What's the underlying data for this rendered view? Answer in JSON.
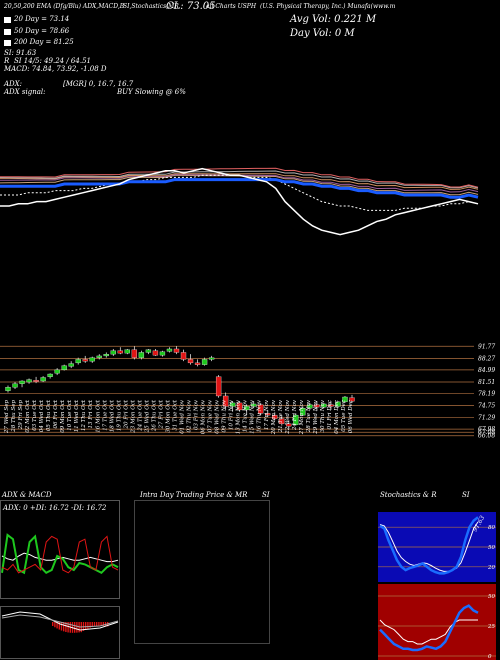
{
  "header": {
    "line1": "20,50,200 EMA (Dfg/Blu) ADX,MACD,B",
    "line1b": "SI,Stochastics,MR",
    "close_label": "CL: 73.05",
    "line1c": "all Charts USPH",
    "line1d": "(U.S. Physical Therapy, Inc.) Munafa(www.m",
    "avg_vol": "Avg Vol: 0.221 M",
    "day_vol": "Day Vol: 0   M",
    "ema20": "20  Day = 73.14",
    "ema50": "50  Day = 78.66",
    "ema200": "200  Day = 81.25",
    "si_a": "SI: 91.63",
    "si_b_r": "R",
    "si_b": "SI 14/5: 49.24 / 64.51",
    "macd": "MACD: 74.84, 73.92, -1.08  D",
    "adx": "ADX:",
    "adx_mgr": "[MGR] 0, 16.7, 16.7",
    "adx_signal": "ADX  signal:",
    "buy_signal": "BUY Slowing @ 6%"
  },
  "colors": {
    "up": "#1ec81e",
    "down": "#e01515",
    "ema20": "#ffffff",
    "ema50": "#ffffff",
    "ema200": "#1a5cff",
    "grid": "#b07040"
  },
  "chart_data": [
    {
      "type": "line",
      "title": "EMA (20,50,200)",
      "series": [
        {
          "name": "20 Day",
          "values": [
            70,
            70,
            71,
            71,
            72,
            72,
            73,
            74,
            75,
            76,
            77,
            78,
            79,
            80,
            82,
            83,
            84,
            85,
            86,
            86,
            85,
            86,
            87,
            86,
            85,
            84,
            84,
            83,
            82,
            81,
            78,
            72,
            68,
            64,
            61,
            59,
            58,
            57,
            58,
            59,
            61,
            63,
            64,
            66,
            67,
            68,
            69,
            70,
            71,
            72,
            73,
            72,
            71
          ]
        },
        {
          "name": "50 Day",
          "values": [
            75,
            75,
            75,
            76,
            76,
            76,
            77,
            77,
            77,
            78,
            78,
            79,
            80,
            80,
            81,
            81,
            82,
            82,
            83,
            83,
            83,
            83,
            84,
            84,
            84,
            84,
            84,
            83,
            83,
            83,
            82,
            80,
            78,
            76,
            74,
            72,
            71,
            70,
            70,
            69,
            68,
            68,
            68,
            68,
            69,
            69,
            69,
            70,
            70,
            71,
            71,
            72,
            71
          ]
        },
        {
          "name": "200 Day",
          "values": [
            79,
            79,
            79,
            79,
            79,
            79,
            79,
            80,
            80,
            80,
            80,
            80,
            80,
            80,
            81,
            81,
            81,
            81,
            81,
            82,
            82,
            82,
            82,
            82,
            82,
            82,
            82,
            82,
            82,
            82,
            82,
            81,
            81,
            80,
            80,
            79,
            79,
            78,
            78,
            77,
            77,
            76,
            76,
            76,
            75,
            75,
            75,
            75,
            75,
            74,
            74,
            75,
            74
          ]
        }
      ]
    },
    {
      "type": "bar",
      "title": "Price",
      "y_ticks": [
        91.77,
        88.27,
        84.99,
        81.51,
        78.19,
        74.75,
        71.29,
        67.98,
        67.08,
        66.08
      ],
      "ylim": [
        66,
        93
      ],
      "categories": [
        "27 Wed Sep",
        "28 Thu Sep",
        "29 Fri Sep",
        "02 Mon Oct",
        "03 Tue Oct",
        "04 Wed Oct",
        "05 Thu Oct",
        "06 Fri Oct",
        "09 Mon Oct",
        "10 Tue Oct",
        "11 Wed Oct",
        "12 Thu Oct",
        "13 Fri Oct",
        "16 Mon Oct",
        "17 Tue Oct",
        "18 Wed Oct",
        "19 Thu Oct",
        "20 Fri Oct",
        "23 Mon Oct",
        "24 Tue Oct",
        "25 Wed Oct",
        "26 Thu Oct",
        "27 Fri Oct",
        "30 Mon Oct",
        "31 Tue Oct",
        "01 Wed Nov",
        "02 Thu Nov",
        "03 Fri Nov",
        "06 Mon Nov",
        "07 Tue Nov",
        "08 Wed Nov",
        "09 Thu Nov",
        "10 Fri Nov",
        "13 Mon Nov",
        "14 Tue Nov",
        "15 Wed Nov",
        "16 Thu Nov",
        "17 Fri Nov",
        "20 Mon Nov",
        "21 Tue Nov",
        "22 Wed Nov",
        "24 Fri Nov",
        "27 Mon Nov",
        "28 Tue Nov",
        "29 Wed Nov",
        "30 Thu Nov",
        "01 Fri Dec",
        "04 Mon Dec",
        "05 Tue Dec",
        "06 Wed Dec"
      ],
      "candles": [
        [
          79,
          80.5,
          78.5,
          80
        ],
        [
          80,
          81.5,
          79.5,
          81
        ],
        [
          81,
          82,
          80,
          81.8
        ],
        [
          81.5,
          82.5,
          81,
          82.2
        ],
        [
          82,
          83,
          81.2,
          81.6
        ],
        [
          81.8,
          83.2,
          81.5,
          82.8
        ],
        [
          83,
          84,
          82.5,
          83.8
        ],
        [
          84,
          85.5,
          83.5,
          85
        ],
        [
          85,
          86.5,
          84.8,
          86.2
        ],
        [
          86,
          87.5,
          85.5,
          86.8
        ],
        [
          87,
          88.5,
          86.5,
          88
        ],
        [
          88,
          89,
          87,
          87.5
        ],
        [
          87.5,
          88.8,
          87,
          88.5
        ],
        [
          88.5,
          89.5,
          88,
          89
        ],
        [
          89,
          90,
          88.5,
          89.5
        ],
        [
          89.5,
          91,
          89,
          90.5
        ],
        [
          90.5,
          91.5,
          89.5,
          89.8
        ],
        [
          89.8,
          91,
          89.5,
          90.8
        ],
        [
          90.8,
          91.8,
          88,
          88.5
        ],
        [
          88.5,
          90.5,
          88,
          90
        ],
        [
          90,
          91,
          89.5,
          90.8
        ],
        [
          90.5,
          91,
          89,
          89.2
        ],
        [
          89.2,
          90.5,
          88.8,
          90.2
        ],
        [
          90.3,
          91.5,
          90,
          91
        ],
        [
          91,
          91.8,
          89.5,
          90
        ],
        [
          90,
          90.8,
          87.5,
          88
        ],
        [
          88,
          89.5,
          86.5,
          87
        ],
        [
          87,
          88,
          86,
          86.5
        ],
        [
          86.5,
          88.5,
          86.2,
          88
        ],
        [
          88,
          89,
          87.5,
          88.5
        ],
        [
          83,
          83.5,
          77,
          77.5
        ],
        [
          77.5,
          78.5,
          73.5,
          74.5
        ],
        [
          74.5,
          76,
          73,
          75.5
        ],
        [
          75.5,
          76,
          73,
          73.5
        ],
        [
          73.5,
          75,
          72,
          74.5
        ],
        [
          74.5,
          76,
          74,
          75.2
        ],
        [
          75,
          75.5,
          72,
          72.5
        ],
        [
          72.5,
          73.5,
          71.5,
          72
        ],
        [
          72,
          72.8,
          70.5,
          71
        ],
        [
          71,
          72,
          69,
          69.5
        ],
        [
          69.5,
          70.5,
          68,
          68.8
        ],
        [
          69.2,
          72.5,
          69,
          72
        ],
        [
          72,
          74.5,
          71.8,
          74
        ],
        [
          74,
          75.5,
          73.5,
          75
        ],
        [
          75,
          76,
          73.2,
          74.3
        ],
        [
          74.3,
          75.5,
          74,
          75.2
        ],
        [
          75,
          76,
          73.5,
          74.5
        ],
        [
          74.5,
          76,
          74,
          75.8
        ],
        [
          75.8,
          77.5,
          75.5,
          77.2
        ],
        [
          77,
          77.8,
          75.5,
          76
        ]
      ]
    },
    {
      "type": "line",
      "title": "ADX & MACD",
      "series": [
        {
          "name": "ADX: 0",
          "values": [
            30,
            28,
            27,
            30,
            32,
            31,
            29,
            28,
            27,
            27,
            28,
            29,
            28,
            27,
            27,
            28,
            29,
            28,
            27,
            26,
            26,
            27
          ]
        },
        {
          "name": "+DI: 16.72",
          "values": [
            18,
            45,
            42,
            20,
            18,
            40,
            44,
            22,
            18,
            20,
            30,
            28,
            22,
            20,
            25,
            24,
            22,
            20,
            18,
            22,
            24,
            22
          ]
        },
        {
          "name": "-DI: 16.72",
          "values": [
            22,
            20,
            24,
            18,
            20,
            22,
            24,
            20,
            40,
            44,
            42,
            20,
            18,
            22,
            40,
            42,
            22,
            20,
            40,
            44,
            22,
            20
          ]
        }
      ]
    },
    {
      "type": "bar",
      "title": "Intra  Day Trading Price  & MR",
      "values": []
    },
    {
      "type": "line",
      "title": "Stochastics & R",
      "y_ticks": [
        80,
        50,
        20
      ],
      "series": [
        {
          "name": "K",
          "values": [
            82,
            78,
            60,
            45,
            30,
            20,
            15,
            18,
            20,
            22,
            25,
            20,
            15,
            12,
            10,
            10,
            12,
            15,
            20,
            35,
            60,
            80,
            90,
            95
          ]
        },
        {
          "name": "D",
          "values": [
            84,
            82,
            72,
            58,
            44,
            34,
            28,
            24,
            22,
            24,
            26,
            25,
            22,
            18,
            15,
            13,
            13,
            15,
            18,
            26,
            42,
            60,
            78,
            88
          ]
        }
      ]
    },
    {
      "type": "line",
      "title": "SI",
      "y_ticks": [
        50,
        25,
        0
      ],
      "series": [
        {
          "name": "SI",
          "values": [
            22,
            18,
            14,
            10,
            8,
            6,
            6,
            5,
            5,
            6,
            8,
            7,
            6,
            8,
            12,
            20,
            28,
            36,
            40,
            42,
            38,
            36
          ]
        }
      ]
    }
  ],
  "panels": {
    "adx_title": "ADX  & MACD",
    "adx_vals": "ADX: 0  +DI: 16.72  -DI: 16.72",
    "intra_title": "Intra  Day Trading Price  & MR",
    "si_title": "SI",
    "stoch_title": "Stochastics & R",
    "si_title2": "SI",
    "stoch_peak": "91.63"
  }
}
